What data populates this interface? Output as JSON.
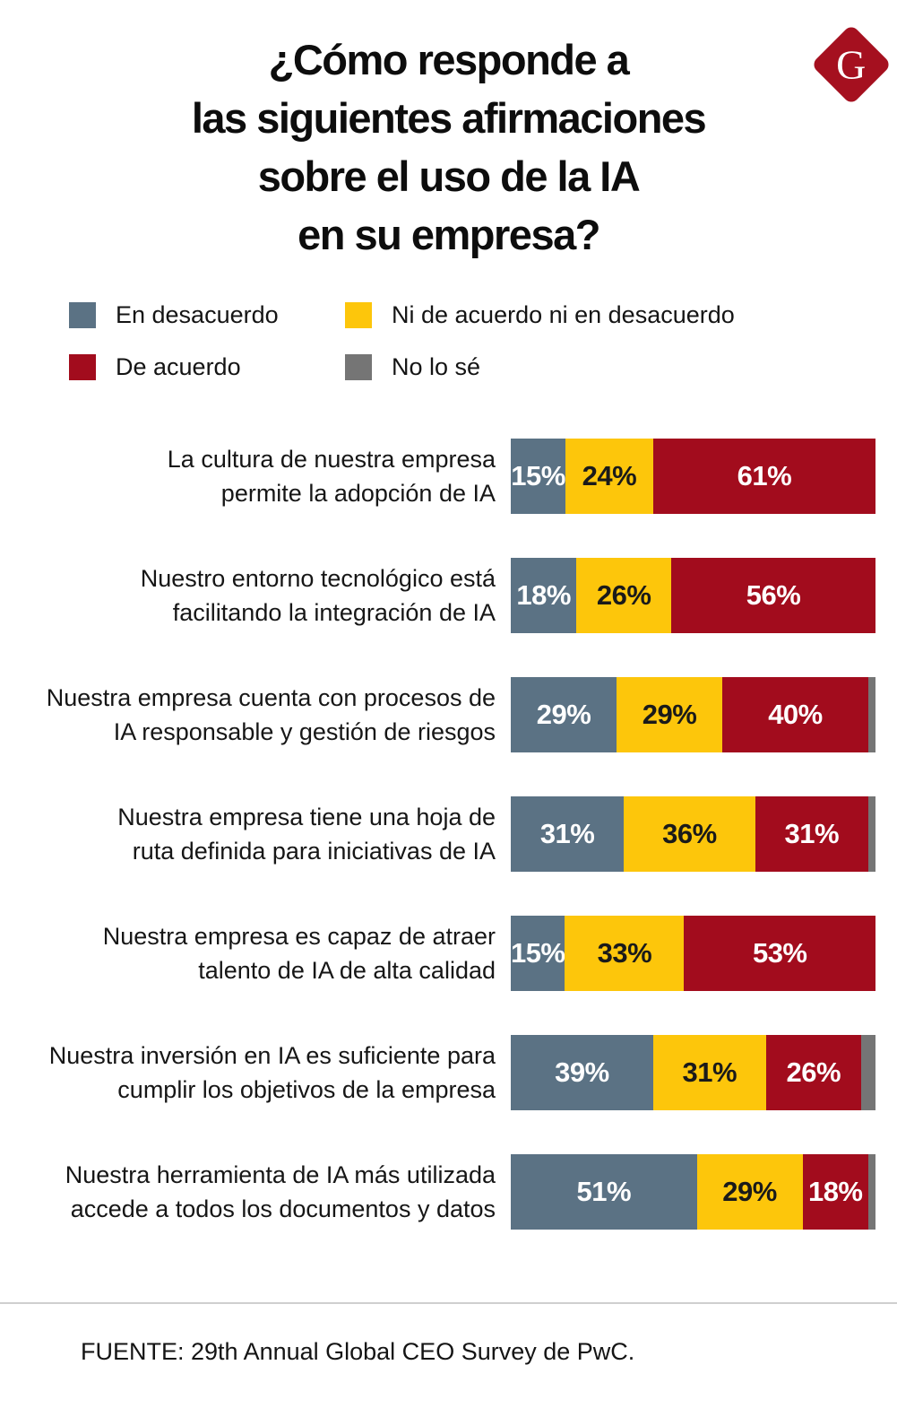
{
  "title": {
    "lines": [
      "¿Cómo responde a",
      "las siguientes afirmaciones",
      "sobre el uso de la IA",
      "en su empresa?"
    ]
  },
  "logo": {
    "letter": "G",
    "bg_color": "#a5101f"
  },
  "legend": {
    "items": [
      {
        "key": "en_desacuerdo",
        "label": "En desacuerdo"
      },
      {
        "key": "ni_acuerdo_ni_desacuerdo",
        "label": "Ni de acuerdo ni en desacuerdo"
      },
      {
        "key": "de_acuerdo",
        "label": "De acuerdo"
      },
      {
        "key": "no_lo_se",
        "label": "No lo sé"
      }
    ]
  },
  "chart_data": {
    "type": "bar",
    "orientation": "horizontal",
    "stacked": true,
    "value_unit": "%",
    "legend_position": "top",
    "series_names": [
      "En desacuerdo",
      "Ni de acuerdo ni en desacuerdo",
      "De acuerdo",
      "No lo sé"
    ],
    "colors": {
      "en_desacuerdo": "#5b7284",
      "ni_acuerdo_ni_desacuerdo": "#fdc60b",
      "de_acuerdo": "#a20c1d",
      "no_lo_se": "#757575"
    },
    "label_colors": {
      "en_desacuerdo": "#ffffff",
      "ni_acuerdo_ni_desacuerdo": "#1a1a1a",
      "de_acuerdo": "#ffffff",
      "no_lo_se": ""
    },
    "rows": [
      {
        "label_lines": [
          "La cultura de nuestra empresa",
          "permite la adopción de IA"
        ],
        "segments": {
          "en_desacuerdo": 15,
          "ni_acuerdo_ni_desacuerdo": 24,
          "de_acuerdo": 61,
          "no_lo_se": 0
        }
      },
      {
        "label_lines": [
          "Nuestro entorno tecnológico está",
          "facilitando la integración de IA"
        ],
        "segments": {
          "en_desacuerdo": 18,
          "ni_acuerdo_ni_desacuerdo": 26,
          "de_acuerdo": 56,
          "no_lo_se": 0
        }
      },
      {
        "label_lines": [
          "Nuestra empresa cuenta con procesos de",
          "IA responsable y gestión de riesgos"
        ],
        "segments": {
          "en_desacuerdo": 29,
          "ni_acuerdo_ni_desacuerdo": 29,
          "de_acuerdo": 40,
          "no_lo_se": 2
        }
      },
      {
        "label_lines": [
          "Nuestra empresa tiene una hoja de",
          "ruta definida para iniciativas de IA"
        ],
        "segments": {
          "en_desacuerdo": 31,
          "ni_acuerdo_ni_desacuerdo": 36,
          "de_acuerdo": 31,
          "no_lo_se": 2
        }
      },
      {
        "label_lines": [
          "Nuestra empresa es capaz de atraer",
          "talento de IA de alta calidad"
        ],
        "segments": {
          "en_desacuerdo": 15,
          "ni_acuerdo_ni_desacuerdo": 33,
          "de_acuerdo": 53,
          "no_lo_se": 0
        }
      },
      {
        "label_lines": [
          "Nuestra inversión en IA es suficiente para",
          "cumplir los objetivos de la empresa"
        ],
        "segments": {
          "en_desacuerdo": 39,
          "ni_acuerdo_ni_desacuerdo": 31,
          "de_acuerdo": 26,
          "no_lo_se": 4
        }
      },
      {
        "label_lines": [
          "Nuestra herramienta de IA más utilizada",
          "accede a todos los documentos y datos"
        ],
        "segments": {
          "en_desacuerdo": 51,
          "ni_acuerdo_ni_desacuerdo": 29,
          "de_acuerdo": 18,
          "no_lo_se": 2
        }
      }
    ]
  },
  "source": {
    "text": "FUENTE: 29th Annual Global CEO Survey de PwC."
  }
}
